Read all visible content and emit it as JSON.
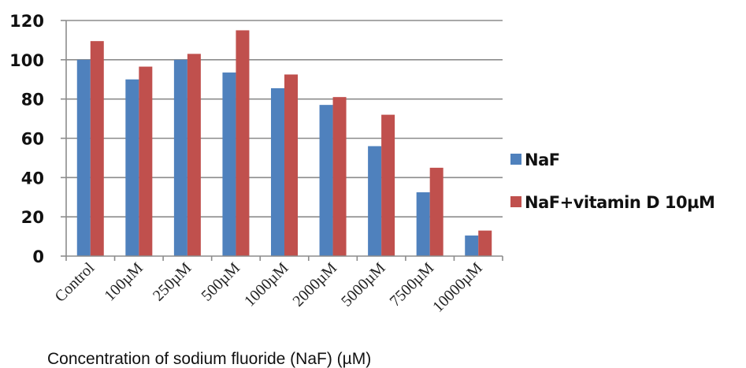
{
  "chart_data": {
    "type": "bar",
    "categories": [
      "Control",
      "100µM",
      "250µM",
      "500µM",
      "1000µM",
      "2000µM",
      "5000µM",
      "7500µM",
      "10000µM"
    ],
    "series": [
      {
        "name": "NaF",
        "color": "#4F81BD",
        "values": [
          100,
          90,
          100,
          93.5,
          85.5,
          77,
          56,
          32.5,
          10.5
        ]
      },
      {
        "name": "NaF+vitamin D 10µM",
        "color": "#C0504D",
        "values": [
          109.5,
          96.5,
          103,
          115,
          92.5,
          81,
          72,
          45,
          13
        ]
      }
    ],
    "yticks": [
      0,
      20,
      40,
      60,
      80,
      100,
      120
    ],
    "ylim": [
      0,
      120
    ],
    "title": "",
    "xlabel": "Concentration of sodium fluoride (NaF) (µM)",
    "ylabel": "",
    "grid": true,
    "legend_position": "right"
  }
}
